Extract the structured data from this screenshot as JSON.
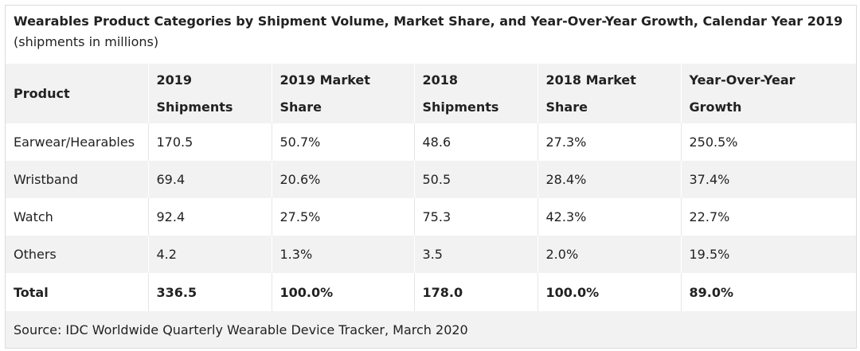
{
  "caption": {
    "title": "Wearables Product Categories by Shipment Volume, Market Share, and Year-Over-Year Growth, Calendar Year 2019",
    "subtitle": "(shipments in millions)"
  },
  "table": {
    "headers": [
      "Product",
      "2019 Shipments",
      "2019 Market Share",
      "2018 Shipments",
      "2018 Market Share",
      "Year-Over-Year Growth"
    ],
    "rows": [
      [
        "Earwear/Hearables",
        "170.5",
        "50.7%",
        "48.6",
        "27.3%",
        "250.5%"
      ],
      [
        "Wristband",
        "69.4",
        "20.6%",
        "50.5",
        "28.4%",
        "37.4%"
      ],
      [
        "Watch",
        "92.4",
        "27.5%",
        "75.3",
        "42.3%",
        "22.7%"
      ],
      [
        "Others",
        "4.2",
        "1.3%",
        "3.5",
        "2.0%",
        "19.5%"
      ]
    ],
    "total": [
      "Total",
      "336.5",
      "100.0%",
      "178.0",
      "100.0%",
      "89.0%"
    ],
    "source": "Source: IDC Worldwide Quarterly Wearable Device Tracker, March 2020"
  }
}
